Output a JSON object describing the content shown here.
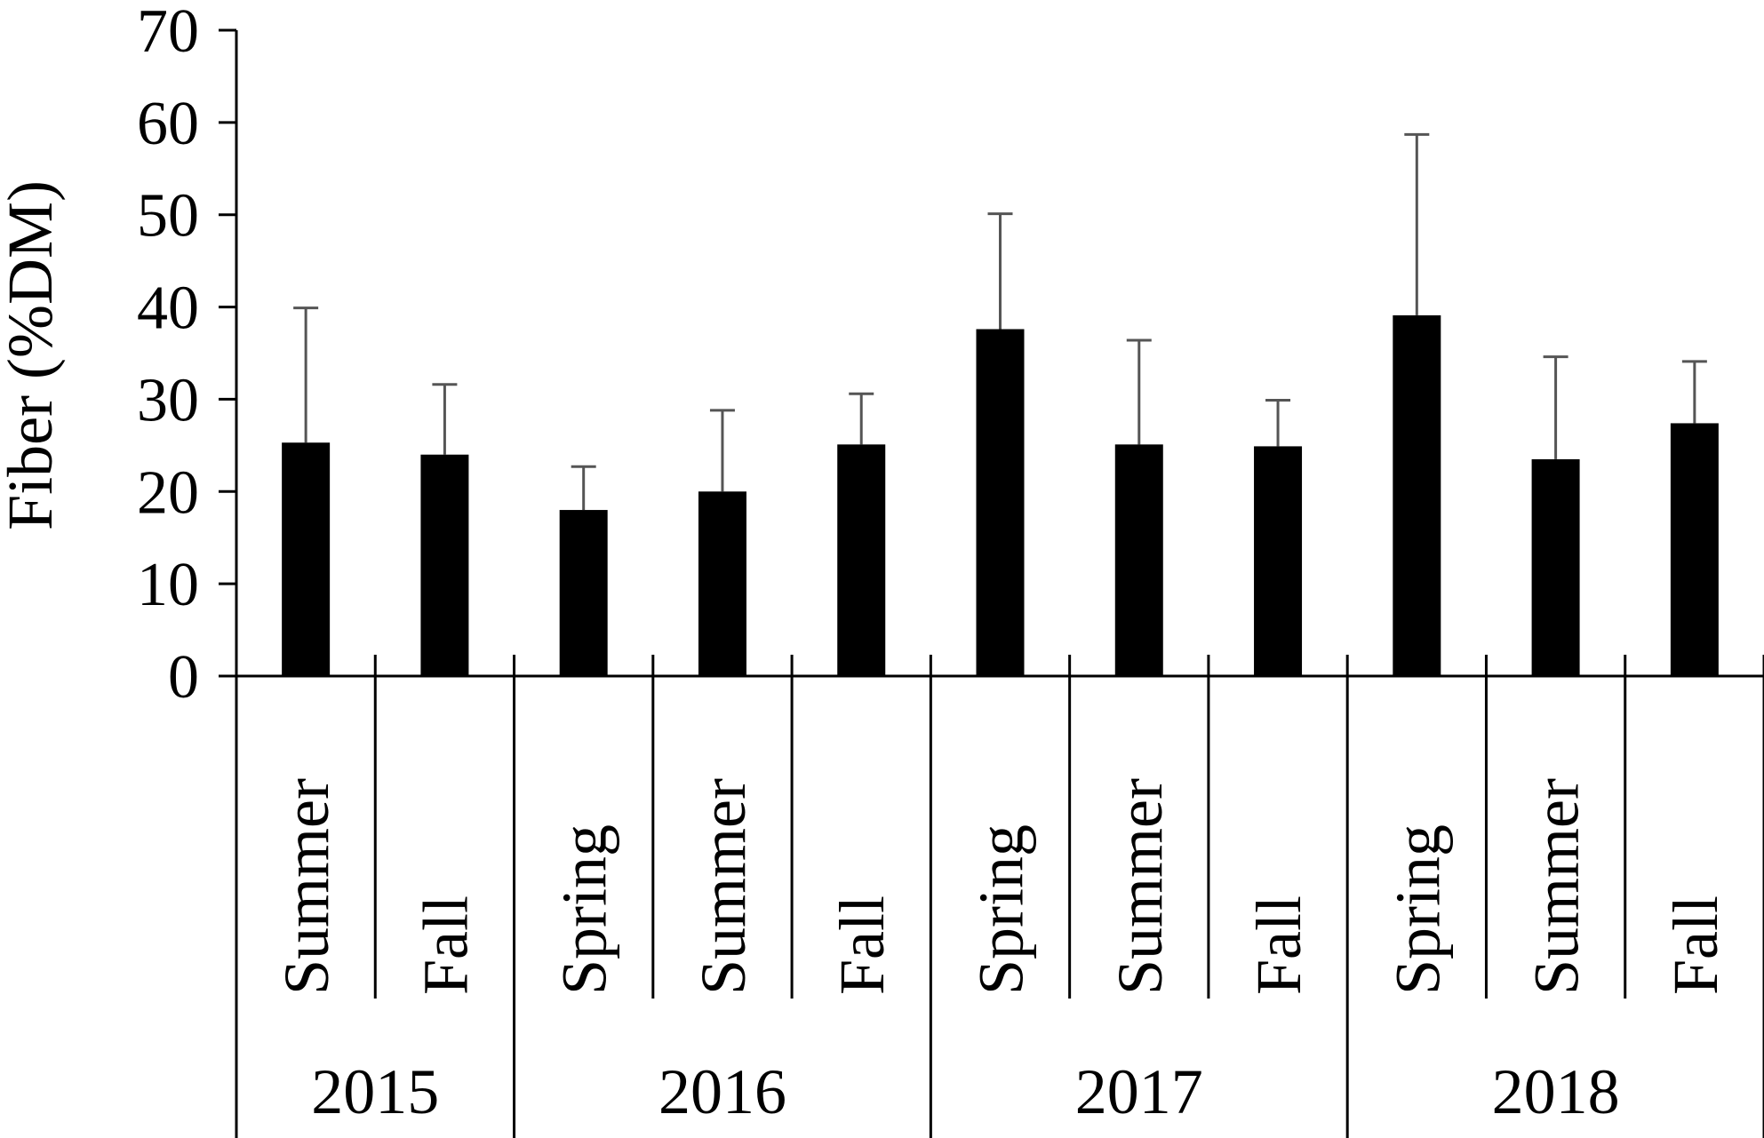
{
  "chart_data": {
    "type": "bar",
    "title": "",
    "xlabel": "",
    "ylabel": "Fiber (%DM)",
    "ylim": [
      0,
      70
    ],
    "yticks": [
      0,
      10,
      20,
      30,
      40,
      50,
      60,
      70
    ],
    "grid": false,
    "legend": "none",
    "bar_color": "#000000",
    "error_color": "#555555",
    "categories": [
      "Summer",
      "Fall",
      "Spring",
      "Summer",
      "Fall",
      "Spring",
      "Summer",
      "Fall",
      "Spring",
      "Summer",
      "Fall"
    ],
    "values": [
      25.3,
      24.0,
      18.0,
      20.0,
      25.1,
      37.6,
      25.1,
      24.9,
      39.1,
      23.5,
      27.4
    ],
    "error_upper": [
      39.9,
      31.6,
      22.7,
      28.8,
      30.6,
      50.1,
      36.4,
      29.9,
      58.7,
      34.6,
      34.1
    ],
    "groups": [
      {
        "label": "2015",
        "count": 2
      },
      {
        "label": "2016",
        "count": 3
      },
      {
        "label": "2017",
        "count": 3
      },
      {
        "label": "2018",
        "count": 3
      }
    ]
  }
}
